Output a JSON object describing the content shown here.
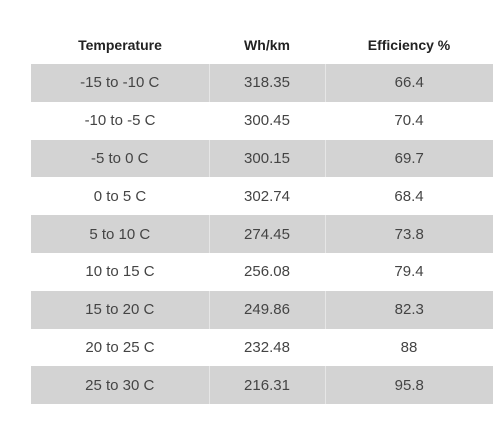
{
  "table": {
    "headers": [
      "Temperature",
      "Wh/km",
      "Efficiency %"
    ],
    "rows": [
      [
        "-15 to -10 C",
        "318.35",
        "66.4"
      ],
      [
        "-10 to -5 C",
        "300.45",
        "70.4"
      ],
      [
        "-5 to 0 C",
        "300.15",
        "69.7"
      ],
      [
        "0 to 5 C",
        "302.74",
        "68.4"
      ],
      [
        "5 to 10 C",
        "274.45",
        "73.8"
      ],
      [
        "10 to 15 C",
        "256.08",
        "79.4"
      ],
      [
        "15 to 20 C",
        "249.86",
        "82.3"
      ],
      [
        "20 to 25 C",
        "232.48",
        "88"
      ],
      [
        "25 to 30 C",
        "216.31",
        "95.8"
      ]
    ],
    "colors": {
      "shaded_row": "#d3d3d3",
      "plain_row": "#ffffff"
    }
  }
}
